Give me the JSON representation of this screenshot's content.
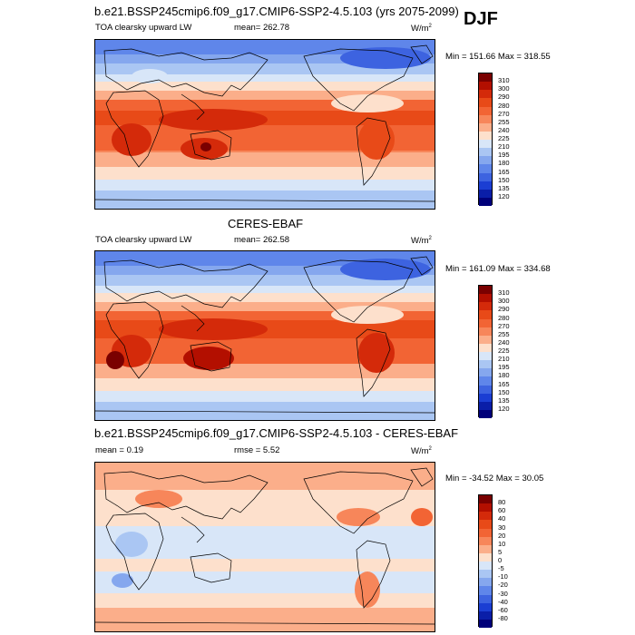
{
  "season": "DJF",
  "panels": [
    {
      "title": "b.e21.BSSP245cmip6.f09_g17.CMIP6-SSP2-4.5.103 (yrs 2075-2099)",
      "left_label": "TOA clearsky upward LW",
      "center_label": "mean= 262.78",
      "units": "W/m",
      "units_sup": "2",
      "minmax": "Min = 151.66 Max = 318.55"
    },
    {
      "title": "CERES-EBAF",
      "left_label": "TOA clearsky upward LW",
      "center_label": "mean= 262.58",
      "units": "W/m",
      "units_sup": "2",
      "minmax": "Min = 161.09 Max = 334.68"
    },
    {
      "title": "b.e21.BSSP245cmip6.f09_g17.CMIP6-SSP2-4.5.103 - CERES-EBAF",
      "left_label": "mean =   0.19",
      "center_label": "rmse =   5.52",
      "units": "W/m",
      "units_sup": "2",
      "minmax": "Min = -34.52 Max =  30.05"
    }
  ],
  "colorbars": {
    "abs": {
      "labels": [
        "310",
        "300",
        "290",
        "280",
        "270",
        "255",
        "240",
        "225",
        "210",
        "195",
        "180",
        "165",
        "150",
        "135",
        "120"
      ],
      "colors": [
        "#7a0000",
        "#b30f00",
        "#d42a0a",
        "#e84a18",
        "#f26434",
        "#f7865a",
        "#fbae8a",
        "#fde0cc",
        "#d8e6f8",
        "#aac6f3",
        "#85a7ee",
        "#5f86ea",
        "#3d63e0",
        "#1b3ed3",
        "#0a1ea8",
        "#00007a"
      ]
    },
    "diff": {
      "labels": [
        "80",
        "60",
        "40",
        "30",
        "20",
        "10",
        "5",
        "0",
        "-5",
        "-10",
        "-20",
        "-30",
        "-40",
        "-60",
        "-80"
      ],
      "colors": [
        "#7a0000",
        "#b30f00",
        "#d42a0a",
        "#e84a18",
        "#f26434",
        "#f7865a",
        "#fbae8a",
        "#fde0cc",
        "#d8e6f8",
        "#aac6f3",
        "#85a7ee",
        "#5f86ea",
        "#3d63e0",
        "#1b3ed3",
        "#0a1ea8",
        "#00007a"
      ]
    }
  }
}
